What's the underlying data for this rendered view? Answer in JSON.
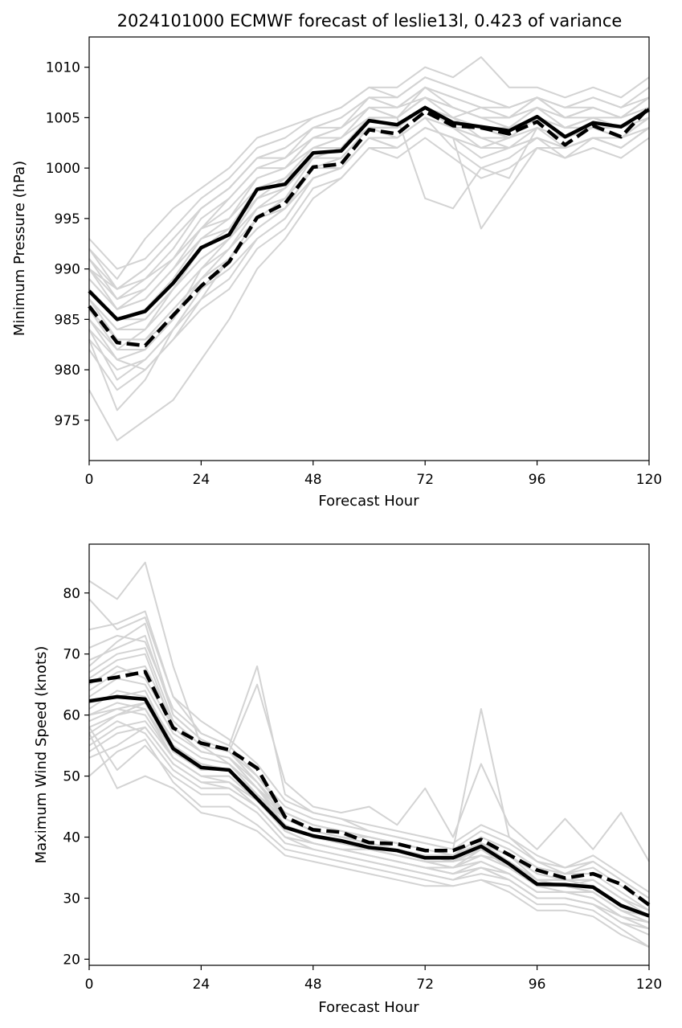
{
  "title": "2024101000 ECMWF forecast of leslie13l, 0.423 of variance",
  "colors": {
    "ensemble": "#d3d3d3",
    "mean": "#000000"
  },
  "chart_data": [
    {
      "type": "line",
      "xlabel": "Forecast Hour",
      "ylabel": "Minimum Pressure (hPa)",
      "xlim": [
        0,
        120
      ],
      "ylim": [
        971,
        1013
      ],
      "xticks": [
        0,
        24,
        48,
        72,
        96,
        120
      ],
      "yticks": [
        975,
        980,
        985,
        990,
        995,
        1000,
        1005,
        1010
      ],
      "x": [
        0,
        6,
        12,
        18,
        24,
        30,
        36,
        42,
        48,
        54,
        60,
        66,
        72,
        78,
        84,
        90,
        96,
        102,
        108,
        114,
        120
      ],
      "mean_solid": [
        987.8,
        985.0,
        985.8,
        988.6,
        992.1,
        993.4,
        997.9,
        998.4,
        1001.5,
        1001.7,
        1004.7,
        1004.3,
        1006.0,
        1004.5,
        1004.1,
        1003.7,
        1005.1,
        1003.1,
        1004.5,
        1004.1,
        1005.8
      ],
      "mean_dashed": [
        986.3,
        982.7,
        982.4,
        985.4,
        988.3,
        990.7,
        995.1,
        996.5,
        1000.1,
        1000.4,
        1003.8,
        1003.4,
        1005.6,
        1004.2,
        1004.0,
        1003.4,
        1004.6,
        1002.3,
        1004.2,
        1003.1,
        1006.0
      ],
      "ensemble": [
        [
          991,
          988,
          990,
          993,
          996,
          998,
          1001,
          1002,
          1004,
          1005,
          1007,
          1006,
          1008,
          1007,
          1006,
          1005,
          1007,
          1005,
          1006,
          1005,
          1007
        ],
        [
          985,
          981,
          980,
          983,
          987,
          991,
          994,
          996,
          999,
          1000,
          1003,
          1002,
          1004,
          1003,
          1001,
          1002,
          1003,
          1001,
          1003,
          1002,
          1004
        ],
        [
          989,
          986,
          987,
          990,
          993,
          994,
          998,
          999,
          1002,
          1002,
          1005,
          1005,
          1007,
          1006,
          1005,
          1004,
          1006,
          1004,
          1005,
          1005,
          1006
        ],
        [
          983,
          976,
          979,
          984,
          988,
          991,
          995,
          996,
          1000,
          1001,
          1004,
          1003,
          1005,
          1002,
          1000,
          1001,
          1003,
          1002,
          1003,
          1002,
          1004
        ],
        [
          993,
          990,
          991,
          994,
          997,
          999,
          1002,
          1003,
          1005,
          1006,
          1008,
          1007,
          1009,
          1008,
          1007,
          1006,
          1007,
          1006,
          1007,
          1006,
          1008
        ],
        [
          978,
          973,
          975,
          977,
          981,
          985,
          990,
          993,
          997,
          999,
          1002,
          1001,
          1003,
          1001,
          999,
          1000,
          1002,
          1001,
          1002,
          1001,
          1003
        ],
        [
          987,
          984,
          984,
          988,
          991,
          993,
          997,
          998,
          1001,
          1002,
          1005,
          1004,
          1006,
          1005,
          1004,
          1003,
          1005,
          1003,
          1004,
          1004,
          1006
        ],
        [
          990,
          988,
          989,
          991,
          994,
          996,
          999,
          1000,
          1003,
          1004,
          1006,
          1005,
          1008,
          1006,
          1005,
          1005,
          1006,
          1004,
          1005,
          1004,
          1006
        ],
        [
          984,
          979,
          981,
          984,
          987,
          989,
          993,
          995,
          999,
          1000,
          1003,
          1003,
          1005,
          1004,
          1002,
          1003,
          1004,
          1003,
          1004,
          1003,
          1005
        ],
        [
          992,
          989,
          993,
          996,
          998,
          1000,
          1003,
          1004,
          1005,
          1006,
          1008,
          1008,
          1010,
          1009,
          1011,
          1008,
          1008,
          1007,
          1008,
          1007,
          1009
        ],
        [
          986,
          983,
          983,
          985,
          990,
          992,
          996,
          997,
          1001,
          1001,
          1004,
          1004,
          1006,
          1005,
          1003,
          1003,
          1005,
          1004,
          1004,
          1003,
          1005
        ],
        [
          988,
          985,
          986,
          989,
          993,
          995,
          998,
          999,
          1002,
          1003,
          1005,
          1005,
          997,
          996,
          1000,
          999,
          1004,
          1002,
          1003,
          1003,
          1004
        ],
        [
          982,
          978,
          980,
          983,
          986,
          988,
          992,
          994,
          998,
          999,
          1002,
          1002,
          1004,
          1003,
          994,
          998,
          1002,
          1002,
          1003,
          1002,
          1004
        ],
        [
          990,
          987,
          988,
          991,
          995,
          997,
          1000,
          1001,
          1003,
          1004,
          1006,
          1006,
          1007,
          1005,
          1006,
          1005,
          1007,
          1005,
          1006,
          1005,
          1007
        ],
        [
          984,
          981,
          982,
          985,
          989,
          991,
          994,
          996,
          1000,
          1000,
          1003,
          1003,
          1005,
          1004,
          1003,
          1002,
          1004,
          1003,
          1004,
          1003,
          1005
        ],
        [
          991,
          987,
          989,
          992,
          996,
          998,
          1001,
          1002,
          1004,
          1004,
          1007,
          1006,
          1008,
          1007,
          1006,
          1006,
          1007,
          1006,
          1006,
          1005,
          1007
        ],
        [
          986,
          982,
          984,
          987,
          990,
          993,
          996,
          998,
          1001,
          1002,
          1004,
          1004,
          1006,
          1004,
          1004,
          1003,
          1005,
          1004,
          1005,
          1004,
          1006
        ],
        [
          989,
          986,
          987,
          990,
          994,
          995,
          999,
          1000,
          1002,
          1003,
          1006,
          1005,
          1007,
          1006,
          1005,
          1004,
          1006,
          1005,
          1005,
          1004,
          1006
        ],
        [
          987,
          983,
          983,
          986,
          989,
          992,
          995,
          997,
          1000,
          1001,
          1004,
          1004,
          1006,
          1005,
          1004,
          1003,
          1005,
          1004,
          1004,
          1003,
          1005
        ],
        [
          992,
          988,
          990,
          993,
          996,
          998,
          1001,
          1001,
          1004,
          1005,
          1007,
          1007,
          1009,
          1008,
          1007,
          1006,
          1007,
          1006,
          1007,
          1006,
          1007
        ],
        [
          983,
          980,
          981,
          984,
          988,
          990,
          993,
          995,
          999,
          1000,
          1003,
          1002,
          1004,
          1003,
          1002,
          1002,
          1003,
          1002,
          1003,
          1002,
          1004
        ],
        [
          988,
          985,
          985,
          988,
          992,
          994,
          997,
          999,
          1001,
          1002,
          1005,
          1004,
          1006,
          1005,
          1004,
          1004,
          1005,
          1004,
          1005,
          1004,
          1006
        ],
        [
          990,
          986,
          988,
          991,
          994,
          997,
          1000,
          1000,
          1003,
          1003,
          1006,
          1005,
          1007,
          1006,
          1005,
          1005,
          1006,
          1005,
          1006,
          1005,
          1006
        ],
        [
          985,
          982,
          982,
          985,
          989,
          991,
          995,
          996,
          1000,
          1001,
          1004,
          1003,
          1005,
          1004,
          1003,
          1003,
          1005,
          1003,
          1004,
          1003,
          1005
        ],
        [
          987,
          984,
          985,
          988,
          991,
          993,
          997,
          998,
          1001,
          1002,
          1005,
          1004,
          1006,
          1005,
          1004,
          1003,
          1005,
          1004,
          1005,
          1004,
          1005
        ]
      ]
    },
    {
      "type": "line",
      "xlabel": "Forecast Hour",
      "ylabel": "Maximum Wind Speed (knots)",
      "xlim": [
        0,
        120
      ],
      "ylim": [
        19,
        88
      ],
      "xticks": [
        0,
        24,
        48,
        72,
        96,
        120
      ],
      "yticks": [
        20,
        30,
        40,
        50,
        60,
        70,
        80
      ],
      "x": [
        0,
        6,
        12,
        18,
        24,
        30,
        36,
        42,
        48,
        54,
        60,
        66,
        72,
        78,
        84,
        90,
        96,
        102,
        108,
        114,
        120
      ],
      "mean_solid": [
        62.3,
        63.0,
        62.6,
        54.5,
        51.4,
        51.0,
        46.3,
        41.6,
        40.2,
        39.4,
        38.3,
        37.8,
        36.6,
        36.6,
        38.5,
        35.6,
        32.3,
        32.2,
        31.8,
        28.8,
        27.1
      ],
      "mean_dashed": [
        65.5,
        66.2,
        67.1,
        57.9,
        55.4,
        54.3,
        51.3,
        43.3,
        41.2,
        40.8,
        39.1,
        38.9,
        37.8,
        37.8,
        39.6,
        37.1,
        34.6,
        33.3,
        34.0,
        32.3,
        28.9
      ],
      "ensemble": [
        [
          82,
          79,
          85,
          68,
          55,
          52,
          48,
          44,
          42,
          41,
          40,
          39,
          38,
          37,
          40,
          38,
          35,
          34,
          36,
          33,
          30
        ],
        [
          79,
          74,
          76,
          63,
          57,
          55,
          68,
          47,
          44,
          43,
          41,
          40,
          39,
          38,
          61,
          40,
          36,
          35,
          37,
          34,
          31
        ],
        [
          68,
          72,
          75,
          60,
          56,
          54,
          65,
          49,
          45,
          44,
          45,
          42,
          48,
          40,
          52,
          42,
          38,
          43,
          38,
          44,
          36
        ],
        [
          57,
          60,
          62,
          55,
          52,
          51,
          47,
          42,
          40,
          39,
          38,
          37,
          36,
          35,
          37,
          36,
          33,
          32,
          33,
          30,
          27
        ],
        [
          53,
          55,
          58,
          52,
          49,
          49,
          45,
          40,
          39,
          38,
          37,
          36,
          35,
          34,
          35,
          34,
          31,
          31,
          31,
          28,
          26
        ],
        [
          61,
          64,
          63,
          56,
          53,
          52,
          47,
          43,
          41,
          40,
          39,
          38,
          37,
          37,
          39,
          36,
          33,
          33,
          32,
          29,
          27
        ],
        [
          58,
          51,
          55,
          50,
          47,
          47,
          44,
          39,
          38,
          37,
          36,
          35,
          34,
          33,
          34,
          33,
          30,
          30,
          29,
          26,
          25
        ],
        [
          66,
          69,
          70,
          58,
          54,
          53,
          48,
          42,
          40,
          39,
          39,
          38,
          37,
          36,
          38,
          35,
          32,
          32,
          31,
          28,
          26
        ],
        [
          71,
          73,
          72,
          61,
          57,
          55,
          50,
          45,
          43,
          42,
          41,
          40,
          39,
          38,
          41,
          39,
          36,
          34,
          35,
          32,
          29
        ],
        [
          55,
          58,
          59,
          53,
          50,
          50,
          46,
          41,
          39,
          38,
          37,
          36,
          35,
          34,
          36,
          34,
          31,
          31,
          30,
          27,
          26
        ],
        [
          63,
          66,
          65,
          57,
          54,
          53,
          49,
          43,
          41,
          40,
          39,
          38,
          37,
          36,
          38,
          36,
          33,
          32,
          32,
          29,
          27
        ],
        [
          60,
          62,
          61,
          54,
          51,
          51,
          46,
          42,
          40,
          39,
          38,
          37,
          36,
          36,
          37,
          35,
          32,
          32,
          31,
          28,
          26
        ],
        [
          50,
          54,
          56,
          49,
          45,
          45,
          42,
          38,
          37,
          36,
          35,
          34,
          33,
          32,
          33,
          32,
          29,
          29,
          28,
          25,
          22
        ],
        [
          74,
          75,
          77,
          63,
          59,
          56,
          52,
          46,
          44,
          43,
          42,
          41,
          40,
          39,
          42,
          40,
          37,
          35,
          36,
          33,
          30
        ],
        [
          59,
          61,
          60,
          53,
          50,
          50,
          46,
          41,
          39,
          38,
          38,
          37,
          36,
          35,
          37,
          35,
          32,
          31,
          31,
          28,
          26
        ],
        [
          64,
          67,
          68,
          59,
          55,
          54,
          49,
          44,
          42,
          41,
          40,
          39,
          38,
          37,
          39,
          37,
          34,
          33,
          33,
          30,
          28
        ],
        [
          56,
          59,
          57,
          51,
          48,
          48,
          45,
          40,
          39,
          38,
          37,
          36,
          35,
          34,
          35,
          33,
          30,
          30,
          29,
          26,
          24
        ],
        [
          69,
          71,
          73,
          60,
          56,
          54,
          50,
          44,
          42,
          41,
          40,
          39,
          38,
          37,
          40,
          38,
          35,
          34,
          34,
          31,
          28
        ],
        [
          62,
          63,
          64,
          55,
          52,
          51,
          47,
          42,
          40,
          39,
          38,
          37,
          36,
          35,
          38,
          36,
          33,
          32,
          32,
          29,
          27
        ],
        [
          57,
          48,
          50,
          48,
          44,
          43,
          41,
          37,
          36,
          35,
          34,
          33,
          32,
          32,
          33,
          31,
          28,
          28,
          27,
          24,
          22
        ],
        [
          67,
          70,
          71,
          59,
          55,
          54,
          49,
          43,
          41,
          40,
          40,
          39,
          38,
          37,
          39,
          37,
          34,
          33,
          33,
          30,
          28
        ],
        [
          60,
          61,
          62,
          54,
          51,
          51,
          46,
          42,
          40,
          39,
          38,
          37,
          36,
          36,
          38,
          35,
          32,
          32,
          31,
          28,
          27
        ],
        [
          54,
          57,
          58,
          52,
          49,
          48,
          45,
          40,
          38,
          37,
          36,
          35,
          34,
          33,
          35,
          33,
          30,
          30,
          29,
          27,
          25
        ],
        [
          65,
          68,
          66,
          58,
          54,
          53,
          48,
          43,
          41,
          40,
          39,
          38,
          37,
          36,
          39,
          37,
          33,
          33,
          32,
          29,
          27
        ],
        [
          58,
          60,
          61,
          53,
          50,
          49,
          46,
          41,
          39,
          38,
          37,
          36,
          35,
          35,
          36,
          34,
          31,
          31,
          30,
          27,
          25
        ]
      ]
    }
  ]
}
